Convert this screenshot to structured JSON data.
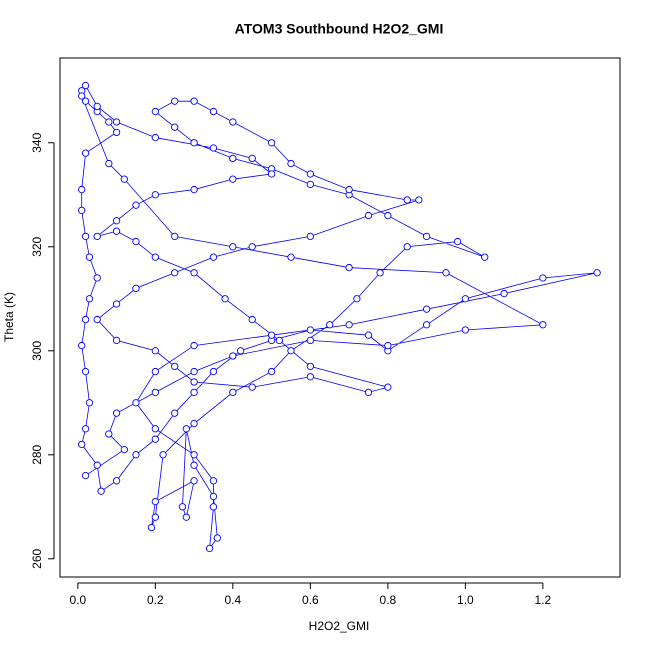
{
  "chart_data": {
    "type": "line",
    "title": "ATOM3 Southbound H2O2_GMI",
    "x_label": "H2O2_GMI",
    "y_label": "Theta (K)",
    "color": "#0000ff",
    "xlim": [
      -0.046,
      1.399
    ],
    "ylim": [
      256.5,
      356.3
    ],
    "xticks": [
      {
        "value": 0,
        "label": "0.0"
      },
      0.2,
      0.4,
      0.6,
      0.8,
      {
        "value": 1,
        "label": "1.0"
      },
      1.2
    ],
    "yticks": [
      260,
      280,
      300,
      320,
      340
    ],
    "x": [
      0.01,
      0.02,
      0.05,
      0.08,
      0.1,
      0.02,
      0.01,
      0.01,
      0.02,
      0.03,
      0.05,
      0.03,
      0.02,
      0.01,
      0.02,
      0.03,
      0.02,
      0.01,
      0.05,
      0.06,
      0.1,
      0.15,
      0.2,
      0.25,
      0.3,
      0.35,
      0.42,
      0.5,
      0.6,
      0.75,
      0.8,
      0.9,
      1.0,
      1.2,
      1.34,
      1.1,
      0.9,
      0.7,
      0.5,
      0.3,
      0.2,
      0.15,
      0.2,
      0.3,
      0.35,
      0.35,
      0.34,
      0.36,
      0.35,
      0.3,
      0.28,
      0.27,
      0.28,
      0.3,
      0.2,
      0.19,
      0.2,
      0.22,
      0.3,
      0.4,
      0.5,
      0.55,
      0.65,
      0.72,
      0.78,
      0.85,
      0.98,
      1.05,
      0.9,
      0.8,
      0.7,
      0.6,
      0.5,
      0.4,
      0.3,
      0.25,
      0.2,
      0.25,
      0.3,
      0.35,
      0.4,
      0.5,
      0.55,
      0.6,
      0.7,
      0.85,
      0.88,
      0.75,
      0.6,
      0.45,
      0.35,
      0.25,
      0.15,
      0.1,
      0.05,
      0.1,
      0.2,
      0.25,
      0.3,
      0.45,
      0.6,
      0.75,
      0.8,
      0.6,
      0.52,
      0.45,
      0.38,
      0.3,
      0.2,
      0.15,
      0.1,
      0.05,
      0.1,
      0.15,
      0.2,
      0.3,
      0.4,
      0.5,
      0.45,
      0.35,
      0.2,
      0.1,
      0.05,
      0.02,
      0.01,
      0.08,
      0.12,
      0.25,
      0.4,
      0.55,
      0.7,
      0.95,
      1.2,
      1.0,
      0.8,
      0.6,
      0.4,
      0.3,
      0.2,
      0.1,
      0.08,
      0.12,
      0.02
    ],
    "values": [
      350,
      348,
      346,
      344,
      342,
      338,
      331,
      327,
      322,
      318,
      314,
      310,
      306,
      301,
      296,
      290,
      285,
      282,
      278,
      273,
      275,
      280,
      283,
      288,
      292,
      296,
      300,
      302,
      304,
      303,
      300,
      305,
      310,
      314,
      315,
      311,
      308,
      305,
      303,
      301,
      296,
      290,
      285,
      280,
      275,
      270,
      262,
      264,
      272,
      278,
      285,
      270,
      268,
      275,
      271,
      266,
      268,
      280,
      286,
      292,
      296,
      300,
      305,
      310,
      315,
      320,
      321,
      318,
      322,
      326,
      330,
      332,
      335,
      337,
      340,
      343,
      346,
      348,
      348,
      346,
      344,
      340,
      336,
      334,
      331,
      329,
      329,
      326,
      322,
      320,
      318,
      315,
      312,
      309,
      306,
      302,
      300,
      297,
      294,
      293,
      295,
      292,
      293,
      297,
      302,
      306,
      310,
      315,
      318,
      321,
      323,
      322,
      325,
      328,
      330,
      331,
      333,
      334,
      337,
      339,
      341,
      344,
      347,
      351,
      349,
      336,
      333,
      322,
      320,
      318,
      316,
      315,
      305,
      304,
      301,
      302,
      299,
      296,
      292,
      288,
      284,
      281,
      276
    ]
  }
}
